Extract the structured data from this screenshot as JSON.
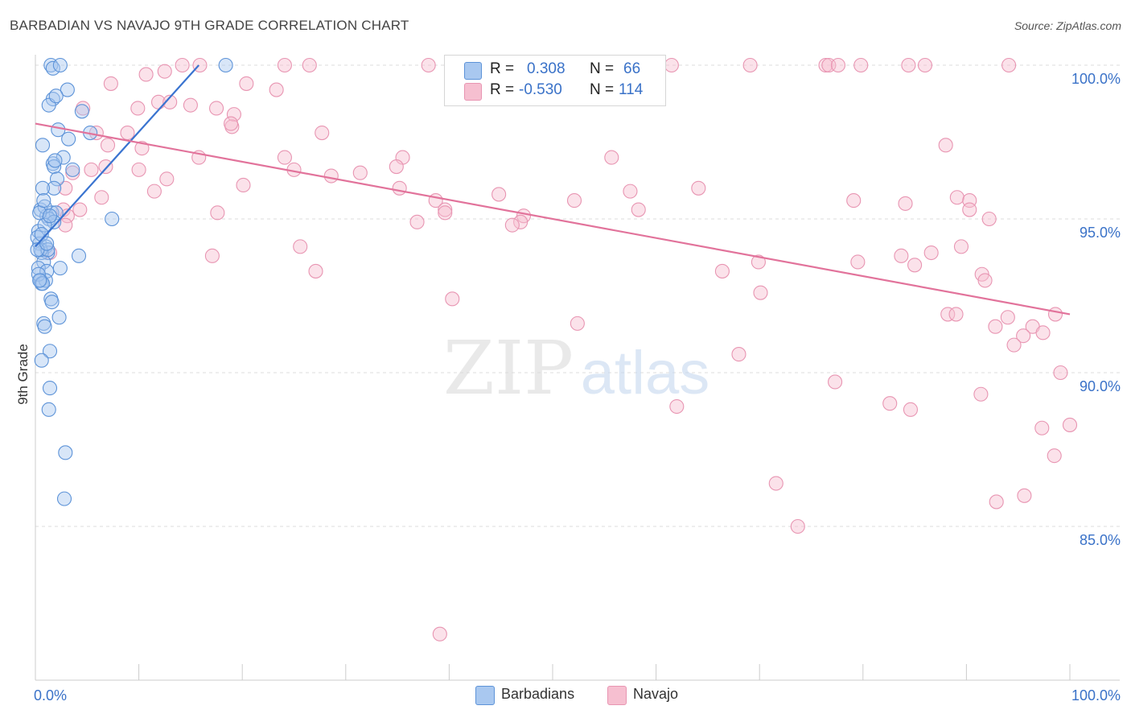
{
  "title": "BARBADIAN VS NAVAJO 9TH GRADE CORRELATION CHART",
  "source": "Source: ZipAtlas.com",
  "watermark": {
    "part1": "ZIP",
    "part2": "atlas"
  },
  "legend": {
    "rows": [
      {
        "r_label": "R =",
        "r_value": "0.308",
        "n_label": "N =",
        "n_value": "66"
      },
      {
        "r_label": "R =",
        "r_value": "-0.530",
        "n_label": "N =",
        "n_value": "114"
      }
    ]
  },
  "bottom_legend": [
    {
      "label": "Barbadians"
    },
    {
      "label": "Navajo"
    }
  ],
  "colors": {
    "blue_fill": "#a9c8f0",
    "blue_stroke": "#5d93d8",
    "blue_line": "#3a74d0",
    "pink_fill": "#f6bfd0",
    "pink_stroke": "#e895b2",
    "pink_line": "#e2739b",
    "axis_label": "#3a72c8",
    "grid": "#dddddd"
  },
  "chart_data": {
    "type": "scatter",
    "title": "BARBADIAN VS NAVAJO 9TH GRADE CORRELATION CHART",
    "xlabel": "",
    "ylabel": "9th Grade",
    "xlim": [
      0,
      100
    ],
    "ylim": [
      80.5,
      101.0
    ],
    "x_tick_labels": [
      "0.0%",
      "100.0%"
    ],
    "y_ticks": [
      85.0,
      90.0,
      95.0,
      100.0
    ],
    "y_tick_labels": [
      "85.0%",
      "90.0%",
      "95.0%",
      "100.0%"
    ],
    "series": [
      {
        "name": "Barbadians",
        "color": "blue",
        "r": 0.308,
        "n": 66,
        "trend": {
          "x": [
            0.0,
            15.8
          ],
          "y": [
            94.1,
            100.0
          ]
        },
        "points": [
          [
            1.5,
            100.0
          ],
          [
            1.7,
            99.9
          ],
          [
            2.4,
            100.0
          ],
          [
            18.4,
            100.0
          ],
          [
            3.1,
            99.2
          ],
          [
            1.7,
            98.9
          ],
          [
            1.3,
            98.7
          ],
          [
            4.5,
            98.5
          ],
          [
            2.2,
            97.9
          ],
          [
            5.3,
            97.8
          ],
          [
            3.2,
            97.6
          ],
          [
            0.7,
            97.4
          ],
          [
            2.7,
            97.0
          ],
          [
            1.7,
            96.8
          ],
          [
            1.8,
            96.7
          ],
          [
            3.6,
            96.6
          ],
          [
            2.1,
            96.3
          ],
          [
            1.8,
            96.0
          ],
          [
            0.7,
            96.0
          ],
          [
            0.5,
            95.3
          ],
          [
            1.6,
            95.2
          ],
          [
            1.1,
            95.1
          ],
          [
            2.0,
            95.2
          ],
          [
            7.4,
            95.0
          ],
          [
            1.3,
            95.0
          ],
          [
            1.8,
            94.9
          ],
          [
            0.9,
            95.4
          ],
          [
            0.3,
            94.6
          ],
          [
            0.4,
            94.2
          ],
          [
            1.0,
            94.1
          ],
          [
            1.2,
            93.9
          ],
          [
            0.6,
            93.9
          ],
          [
            4.2,
            93.8
          ],
          [
            0.8,
            93.6
          ],
          [
            0.3,
            93.4
          ],
          [
            2.4,
            93.4
          ],
          [
            1.1,
            93.3
          ],
          [
            0.5,
            93.0
          ],
          [
            0.6,
            92.9
          ],
          [
            1.5,
            92.4
          ],
          [
            2.3,
            91.8
          ],
          [
            0.8,
            91.6
          ],
          [
            0.9,
            91.5
          ],
          [
            1.4,
            90.7
          ],
          [
            0.6,
            90.4
          ],
          [
            1.4,
            89.5
          ],
          [
            1.3,
            88.8
          ],
          [
            2.9,
            87.4
          ],
          [
            2.8,
            85.9
          ],
          [
            0.2,
            94.4
          ],
          [
            1.0,
            93.0
          ],
          [
            0.4,
            95.2
          ],
          [
            0.9,
            94.8
          ],
          [
            1.6,
            92.3
          ],
          [
            2.0,
            99.0
          ],
          [
            0.5,
            94.0
          ],
          [
            1.2,
            94.0
          ],
          [
            0.3,
            93.2
          ],
          [
            0.7,
            92.9
          ],
          [
            0.6,
            94.5
          ],
          [
            1.4,
            95.1
          ],
          [
            0.2,
            94.0
          ],
          [
            0.8,
            95.6
          ],
          [
            0.4,
            93.0
          ],
          [
            1.9,
            96.9
          ],
          [
            1.1,
            94.2
          ]
        ]
      },
      {
        "name": "Navajo",
        "color": "pink",
        "r": -0.53,
        "n": 114,
        "trend": {
          "x": [
            0.0,
            100.0
          ],
          "y": [
            98.1,
            91.9
          ]
        },
        "points": [
          [
            14.2,
            100.0
          ],
          [
            15.9,
            100.0
          ],
          [
            24.1,
            100.0
          ],
          [
            26.5,
            100.0
          ],
          [
            38.0,
            100.0
          ],
          [
            40.2,
            100.0
          ],
          [
            45.0,
            100.0
          ],
          [
            48.0,
            100.0
          ],
          [
            48.5,
            100.0
          ],
          [
            61.5,
            100.0
          ],
          [
            69.1,
            100.0
          ],
          [
            76.4,
            100.0
          ],
          [
            76.7,
            100.0
          ],
          [
            77.6,
            100.0
          ],
          [
            79.8,
            100.0
          ],
          [
            84.4,
            100.0
          ],
          [
            86.0,
            100.0
          ],
          [
            94.1,
            100.0
          ],
          [
            12.5,
            99.8
          ],
          [
            10.7,
            99.7
          ],
          [
            20.4,
            99.4
          ],
          [
            7.3,
            99.4
          ],
          [
            23.3,
            99.2
          ],
          [
            11.9,
            98.8
          ],
          [
            13.0,
            98.8
          ],
          [
            9.9,
            98.6
          ],
          [
            4.6,
            98.6
          ],
          [
            17.5,
            98.6
          ],
          [
            15.0,
            98.7
          ],
          [
            19.2,
            98.4
          ],
          [
            19.0,
            98.0
          ],
          [
            18.9,
            98.1
          ],
          [
            5.9,
            97.8
          ],
          [
            27.7,
            97.8
          ],
          [
            8.9,
            97.8
          ],
          [
            7.0,
            97.4
          ],
          [
            88.0,
            97.4
          ],
          [
            10.3,
            97.3
          ],
          [
            55.7,
            97.0
          ],
          [
            15.8,
            97.0
          ],
          [
            24.1,
            97.0
          ],
          [
            35.5,
            97.0
          ],
          [
            34.9,
            96.7
          ],
          [
            6.8,
            96.7
          ],
          [
            3.6,
            96.5
          ],
          [
            5.4,
            96.6
          ],
          [
            25.0,
            96.6
          ],
          [
            10.0,
            96.6
          ],
          [
            31.4,
            96.5
          ],
          [
            28.6,
            96.4
          ],
          [
            12.7,
            96.3
          ],
          [
            20.1,
            96.1
          ],
          [
            35.2,
            96.0
          ],
          [
            2.9,
            96.0
          ],
          [
            64.1,
            96.0
          ],
          [
            11.5,
            95.9
          ],
          [
            57.5,
            95.9
          ],
          [
            44.8,
            95.8
          ],
          [
            6.4,
            95.7
          ],
          [
            52.1,
            95.6
          ],
          [
            38.7,
            95.6
          ],
          [
            79.1,
            95.6
          ],
          [
            84.1,
            95.5
          ],
          [
            89.1,
            95.7
          ],
          [
            90.3,
            95.6
          ],
          [
            90.3,
            95.3
          ],
          [
            17.6,
            95.2
          ],
          [
            4.3,
            95.3
          ],
          [
            58.3,
            95.3
          ],
          [
            2.7,
            95.3
          ],
          [
            3.1,
            95.1
          ],
          [
            39.6,
            95.3
          ],
          [
            39.6,
            95.2
          ],
          [
            47.2,
            95.1
          ],
          [
            92.2,
            95.0
          ],
          [
            36.9,
            94.9
          ],
          [
            46.9,
            94.9
          ],
          [
            2.9,
            94.8
          ],
          [
            46.1,
            94.8
          ],
          [
            25.6,
            94.1
          ],
          [
            89.5,
            94.1
          ],
          [
            86.6,
            93.9
          ],
          [
            83.7,
            93.8
          ],
          [
            17.1,
            93.8
          ],
          [
            1.4,
            93.9
          ],
          [
            79.5,
            93.6
          ],
          [
            69.9,
            93.6
          ],
          [
            85.0,
            93.5
          ],
          [
            27.1,
            93.3
          ],
          [
            91.5,
            93.2
          ],
          [
            66.4,
            93.3
          ],
          [
            91.8,
            93.0
          ],
          [
            70.1,
            92.6
          ],
          [
            40.3,
            92.4
          ],
          [
            52.4,
            91.6
          ],
          [
            88.2,
            91.9
          ],
          [
            89.0,
            91.9
          ],
          [
            98.6,
            91.9
          ],
          [
            94.0,
            91.8
          ],
          [
            92.8,
            91.5
          ],
          [
            96.4,
            91.5
          ],
          [
            97.4,
            91.3
          ],
          [
            95.5,
            91.2
          ],
          [
            94.6,
            90.9
          ],
          [
            68.0,
            90.6
          ],
          [
            99.1,
            90.0
          ],
          [
            77.3,
            89.7
          ],
          [
            91.4,
            89.3
          ],
          [
            82.6,
            89.0
          ],
          [
            62.0,
            88.9
          ],
          [
            84.6,
            88.8
          ],
          [
            97.3,
            88.2
          ],
          [
            100.0,
            88.3
          ],
          [
            98.5,
            87.3
          ],
          [
            95.6,
            86.0
          ],
          [
            92.9,
            85.8
          ],
          [
            71.6,
            86.4
          ],
          [
            73.7,
            85.0
          ],
          [
            39.1,
            81.5
          ]
        ]
      }
    ]
  }
}
